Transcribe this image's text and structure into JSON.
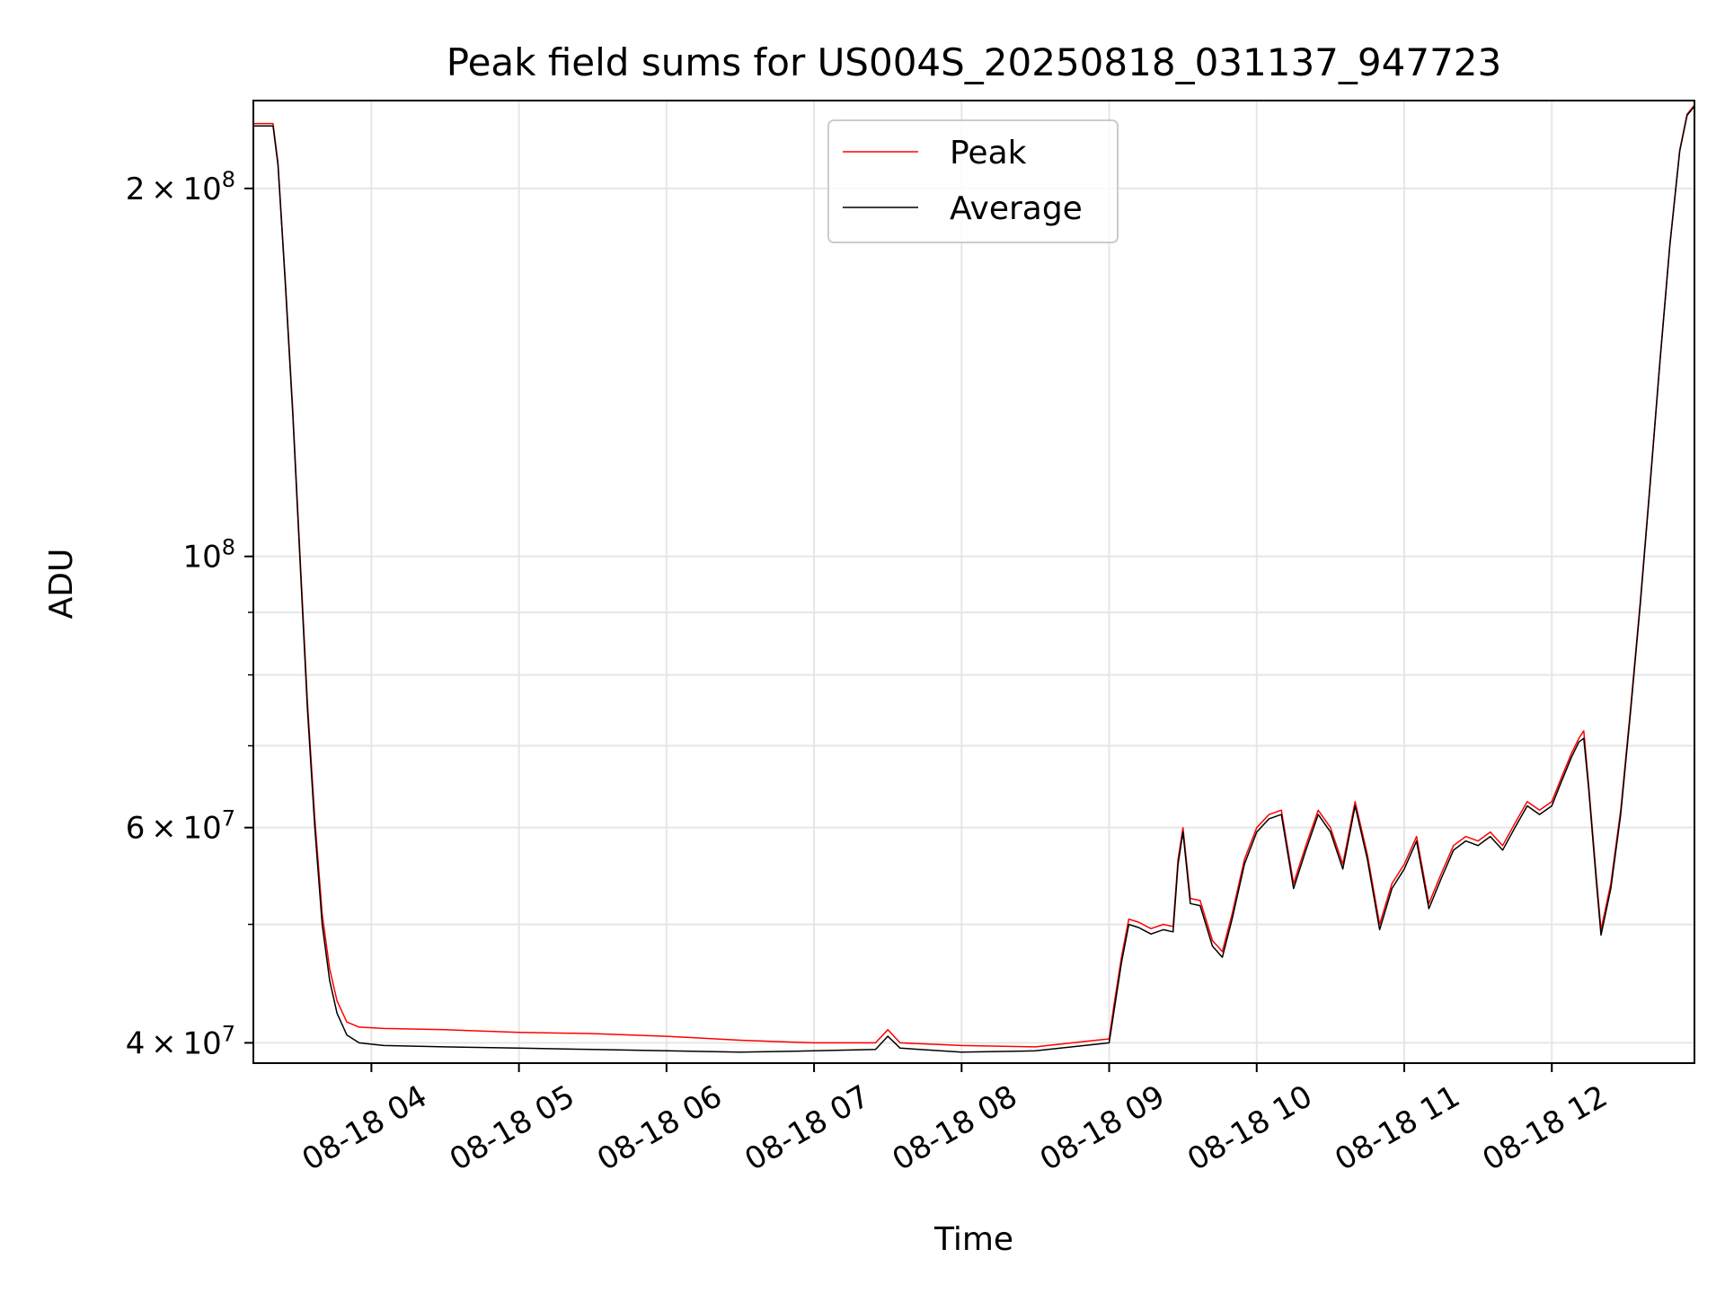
{
  "chart_data": {
    "type": "line",
    "title": "Peak field sums for US004S_20250818_031137_947723",
    "xlabel": "Time",
    "ylabel": "ADU",
    "yscale": "log",
    "xlim": [
      "2025-08-18T03:12",
      "2025-08-18T12:58"
    ],
    "ylim": [
      38500000,
      236000000
    ],
    "grid": true,
    "legend_position": "upper center",
    "x_tick_labels": [
      "08-18 04",
      "08-18 05",
      "08-18 06",
      "08-18 07",
      "08-18 08",
      "08-18 09",
      "08-18 10",
      "08-18 11",
      "08-18 12"
    ],
    "x_tick_times": [
      "2025-08-18T04:00",
      "2025-08-18T05:00",
      "2025-08-18T06:00",
      "2025-08-18T07:00",
      "2025-08-18T08:00",
      "2025-08-18T09:00",
      "2025-08-18T10:00",
      "2025-08-18T11:00",
      "2025-08-18T12:00"
    ],
    "y_major_ticks": [
      {
        "value": 40000000,
        "mantissa": "4",
        "exponent": "7"
      },
      {
        "value": 60000000,
        "mantissa": "6",
        "exponent": "7"
      },
      {
        "value": 100000000,
        "mantissa": "",
        "exponent": "8"
      },
      {
        "value": 200000000,
        "mantissa": "2",
        "exponent": "8"
      }
    ],
    "y_minor_gridlines": [
      50000000,
      70000000,
      80000000,
      90000000
    ],
    "series": [
      {
        "name": "Peak",
        "color": "#ff0000",
        "x": [
          "2025-08-18T03:12",
          "2025-08-18T03:20",
          "2025-08-18T03:22",
          "2025-08-18T03:25",
          "2025-08-18T03:28",
          "2025-08-18T03:31",
          "2025-08-18T03:34",
          "2025-08-18T03:37",
          "2025-08-18T03:40",
          "2025-08-18T03:43",
          "2025-08-18T03:46",
          "2025-08-18T03:50",
          "2025-08-18T03:55",
          "2025-08-18T04:05",
          "2025-08-18T04:30",
          "2025-08-18T05:00",
          "2025-08-18T05:30",
          "2025-08-18T06:00",
          "2025-08-18T06:30",
          "2025-08-18T07:00",
          "2025-08-18T07:25",
          "2025-08-18T07:30",
          "2025-08-18T07:35",
          "2025-08-18T08:00",
          "2025-08-18T08:30",
          "2025-08-18T08:50",
          "2025-08-18T09:00",
          "2025-08-18T09:02",
          "2025-08-18T09:05",
          "2025-08-18T09:08",
          "2025-08-18T09:12",
          "2025-08-18T09:17",
          "2025-08-18T09:22",
          "2025-08-18T09:26",
          "2025-08-18T09:28",
          "2025-08-18T09:30",
          "2025-08-18T09:33",
          "2025-08-18T09:37",
          "2025-08-18T09:42",
          "2025-08-18T09:46",
          "2025-08-18T09:50",
          "2025-08-18T09:55",
          "2025-08-18T10:00",
          "2025-08-18T10:05",
          "2025-08-18T10:10",
          "2025-08-18T10:15",
          "2025-08-18T10:20",
          "2025-08-18T10:25",
          "2025-08-18T10:30",
          "2025-08-18T10:35",
          "2025-08-18T10:40",
          "2025-08-18T10:45",
          "2025-08-18T10:50",
          "2025-08-18T10:55",
          "2025-08-18T11:00",
          "2025-08-18T11:05",
          "2025-08-18T11:10",
          "2025-08-18T11:15",
          "2025-08-18T11:20",
          "2025-08-18T11:25",
          "2025-08-18T11:30",
          "2025-08-18T11:35",
          "2025-08-18T11:40",
          "2025-08-18T11:45",
          "2025-08-18T11:50",
          "2025-08-18T11:55",
          "2025-08-18T12:00",
          "2025-08-18T12:04",
          "2025-08-18T12:08",
          "2025-08-18T12:11",
          "2025-08-18T12:13",
          "2025-08-18T12:15",
          "2025-08-18T12:18",
          "2025-08-18T12:20",
          "2025-08-18T12:24",
          "2025-08-18T12:28",
          "2025-08-18T12:32",
          "2025-08-18T12:36",
          "2025-08-18T12:40",
          "2025-08-18T12:44",
          "2025-08-18T12:48",
          "2025-08-18T12:52",
          "2025-08-18T12:55",
          "2025-08-18T12:58"
        ],
        "y": [
          226000000,
          226000000,
          210000000,
          168000000,
          132000000,
          100000000,
          76000000,
          61000000,
          51000000,
          46000000,
          43300000,
          41600000,
          41200000,
          41100000,
          41000000,
          40800000,
          40700000,
          40500000,
          40200000,
          40000000,
          40000000,
          41000000,
          40000000,
          39800000,
          39700000,
          40100000,
          40300000,
          43000000,
          47000000,
          50500000,
          50200000,
          49600000,
          50000000,
          49800000,
          56500000,
          60000000,
          52500000,
          52300000,
          48500000,
          47500000,
          51000000,
          56500000,
          60000000,
          61500000,
          62000000,
          54000000,
          58000000,
          62000000,
          60000000,
          56000000,
          63000000,
          57000000,
          50000000,
          54000000,
          56000000,
          59000000,
          52000000,
          55000000,
          58000000,
          59000000,
          58500000,
          59500000,
          58000000,
          60500000,
          63000000,
          62000000,
          63000000,
          66000000,
          69000000,
          71000000,
          72000000,
          65000000,
          55000000,
          49500000,
          54000000,
          62000000,
          75000000,
          92000000,
          115000000,
          145000000,
          180000000,
          215000000,
          230000000,
          234000000
        ]
      },
      {
        "name": "Average",
        "color": "#000000",
        "x": [
          "2025-08-18T03:12",
          "2025-08-18T03:20",
          "2025-08-18T03:22",
          "2025-08-18T03:25",
          "2025-08-18T03:28",
          "2025-08-18T03:31",
          "2025-08-18T03:34",
          "2025-08-18T03:37",
          "2025-08-18T03:40",
          "2025-08-18T03:43",
          "2025-08-18T03:46",
          "2025-08-18T03:50",
          "2025-08-18T03:55",
          "2025-08-18T04:05",
          "2025-08-18T04:30",
          "2025-08-18T05:00",
          "2025-08-18T05:30",
          "2025-08-18T06:00",
          "2025-08-18T06:30",
          "2025-08-18T07:00",
          "2025-08-18T07:25",
          "2025-08-18T07:30",
          "2025-08-18T07:35",
          "2025-08-18T08:00",
          "2025-08-18T08:30",
          "2025-08-18T08:50",
          "2025-08-18T09:00",
          "2025-08-18T09:02",
          "2025-08-18T09:05",
          "2025-08-18T09:08",
          "2025-08-18T09:12",
          "2025-08-18T09:17",
          "2025-08-18T09:22",
          "2025-08-18T09:26",
          "2025-08-18T09:28",
          "2025-08-18T09:30",
          "2025-08-18T09:33",
          "2025-08-18T09:37",
          "2025-08-18T09:42",
          "2025-08-18T09:46",
          "2025-08-18T09:50",
          "2025-08-18T09:55",
          "2025-08-18T10:00",
          "2025-08-18T10:05",
          "2025-08-18T10:10",
          "2025-08-18T10:15",
          "2025-08-18T10:20",
          "2025-08-18T10:25",
          "2025-08-18T10:30",
          "2025-08-18T10:35",
          "2025-08-18T10:40",
          "2025-08-18T10:45",
          "2025-08-18T10:50",
          "2025-08-18T10:55",
          "2025-08-18T11:00",
          "2025-08-18T11:05",
          "2025-08-18T11:10",
          "2025-08-18T11:15",
          "2025-08-18T11:20",
          "2025-08-18T11:25",
          "2025-08-18T11:30",
          "2025-08-18T11:35",
          "2025-08-18T11:40",
          "2025-08-18T11:45",
          "2025-08-18T11:50",
          "2025-08-18T11:55",
          "2025-08-18T12:00",
          "2025-08-18T12:04",
          "2025-08-18T12:08",
          "2025-08-18T12:11",
          "2025-08-18T12:13",
          "2025-08-18T12:15",
          "2025-08-18T12:18",
          "2025-08-18T12:20",
          "2025-08-18T12:24",
          "2025-08-18T12:28",
          "2025-08-18T12:32",
          "2025-08-18T12:36",
          "2025-08-18T12:40",
          "2025-08-18T12:44",
          "2025-08-18T12:48",
          "2025-08-18T12:52",
          "2025-08-18T12:55",
          "2025-08-18T12:58"
        ],
        "y": [
          225000000,
          225000000,
          209000000,
          167000000,
          131000000,
          99000000,
          75000000,
          60000000,
          50000000,
          45000000,
          42300000,
          40600000,
          40000000,
          39800000,
          39700000,
          39600000,
          39500000,
          39400000,
          39300000,
          39400000,
          39500000,
          40500000,
          39600000,
          39300000,
          39400000,
          39800000,
          40000000,
          42500000,
          46500000,
          50000000,
          49700000,
          49100000,
          49500000,
          49300000,
          56000000,
          59500000,
          52000000,
          51800000,
          48000000,
          47000000,
          50500000,
          56000000,
          59500000,
          61000000,
          61500000,
          53500000,
          57500000,
          61500000,
          59500000,
          55500000,
          62500000,
          56500000,
          49500000,
          53500000,
          55500000,
          58500000,
          51500000,
          54500000,
          57500000,
          58500000,
          58000000,
          59000000,
          57500000,
          60000000,
          62500000,
          61500000,
          62500000,
          65500000,
          68500000,
          70500000,
          71000000,
          64500000,
          54500000,
          49000000,
          53500000,
          61500000,
          74500000,
          91500000,
          114500000,
          144500000,
          179500000,
          214500000,
          229500000,
          233500000
        ]
      }
    ]
  }
}
